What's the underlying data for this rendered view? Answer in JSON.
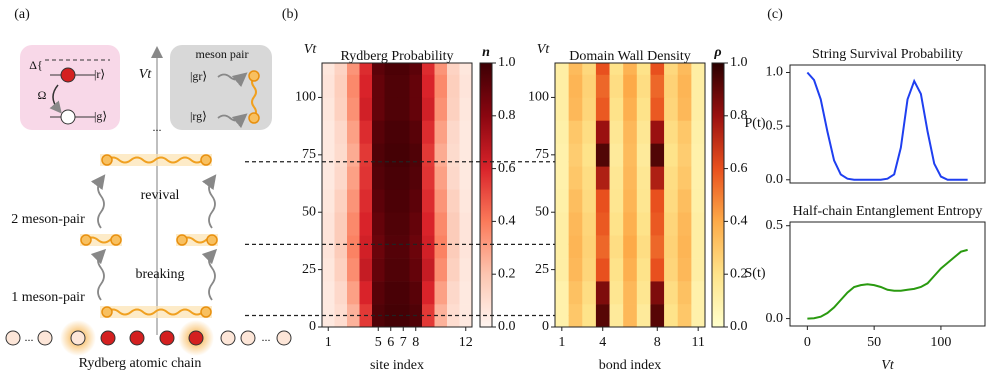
{
  "panel_labels": [
    "(a)",
    "(b)",
    "(c)"
  ],
  "diagram": {
    "delta": "Δ{",
    "ket_r": "|r⟩",
    "omega": "Ω",
    "ket_g": "|g⟩",
    "time_axis": "Vt",
    "meson_pair": "meson pair",
    "ket_gr": "|gr⟩",
    "ket_rg": "|rg⟩",
    "ellipsis": "...",
    "revival": "revival",
    "two_meson": "2 meson-pair",
    "breaking": "breaking",
    "one_meson": "1 meson-pair",
    "chain_dots": "...",
    "chain_label": "Rydberg atomic chain"
  },
  "chart_data": [
    {
      "type": "heatmap",
      "title": "Rydberg Probability",
      "xlabel": "site index",
      "ylabel": "Vt",
      "colorbar_label": "n",
      "x": [
        1,
        2,
        3,
        4,
        5,
        6,
        7,
        8,
        9,
        10,
        11,
        12
      ],
      "y_bins": [
        0,
        10,
        20,
        30,
        40,
        50,
        60,
        70,
        80,
        90,
        100,
        110,
        115
      ],
      "values": [
        [
          0.05,
          0.1,
          0.25,
          0.55,
          0.95,
          0.98,
          0.98,
          0.95,
          0.55,
          0.25,
          0.1,
          0.05
        ],
        [
          0.05,
          0.12,
          0.3,
          0.6,
          0.93,
          0.97,
          0.97,
          0.93,
          0.6,
          0.3,
          0.12,
          0.05
        ],
        [
          0.06,
          0.15,
          0.35,
          0.65,
          0.9,
          0.95,
          0.95,
          0.9,
          0.65,
          0.35,
          0.15,
          0.06
        ],
        [
          0.07,
          0.17,
          0.38,
          0.62,
          0.88,
          0.94,
          0.94,
          0.88,
          0.62,
          0.38,
          0.17,
          0.07
        ],
        [
          0.07,
          0.17,
          0.36,
          0.6,
          0.9,
          0.95,
          0.95,
          0.9,
          0.6,
          0.36,
          0.17,
          0.07
        ],
        [
          0.06,
          0.15,
          0.33,
          0.58,
          0.92,
          0.96,
          0.96,
          0.92,
          0.58,
          0.33,
          0.15,
          0.06
        ],
        [
          0.05,
          0.12,
          0.3,
          0.56,
          0.94,
          0.97,
          0.97,
          0.94,
          0.56,
          0.3,
          0.12,
          0.05
        ],
        [
          0.05,
          0.11,
          0.27,
          0.55,
          0.95,
          0.98,
          0.98,
          0.95,
          0.55,
          0.27,
          0.11,
          0.05
        ],
        [
          0.05,
          0.12,
          0.3,
          0.58,
          0.93,
          0.97,
          0.97,
          0.93,
          0.58,
          0.3,
          0.12,
          0.05
        ],
        [
          0.06,
          0.15,
          0.34,
          0.62,
          0.9,
          0.95,
          0.95,
          0.9,
          0.62,
          0.34,
          0.15,
          0.06
        ],
        [
          0.07,
          0.16,
          0.36,
          0.6,
          0.9,
          0.95,
          0.95,
          0.9,
          0.6,
          0.36,
          0.16,
          0.07
        ],
        [
          0.06,
          0.14,
          0.33,
          0.58,
          0.92,
          0.96,
          0.96,
          0.92,
          0.58,
          0.33,
          0.14,
          0.06
        ]
      ],
      "xlim": [
        0.5,
        12.5
      ],
      "ylim": [
        0,
        115
      ],
      "xticks": [
        1,
        5,
        6,
        7,
        8,
        12
      ],
      "yticks": [
        0,
        25,
        50,
        75,
        100
      ],
      "clim": [
        0,
        1
      ],
      "cticks": [
        {
          "value": 0,
          "label": "0.0"
        },
        {
          "value": 0.2,
          "label": "0.2"
        },
        {
          "value": 0.4,
          "label": "0.4"
        },
        {
          "value": 0.6,
          "label": "0.6"
        },
        {
          "value": 0.8,
          "label": "0.8"
        },
        {
          "value": 1,
          "label": "1.0"
        }
      ],
      "colormap": [
        "#fff5f0",
        "#fcc5b0",
        "#fb7a5a",
        "#d9232a",
        "#8a0610",
        "#3d0004"
      ],
      "hlines": [
        72,
        36,
        5
      ]
    },
    {
      "type": "heatmap",
      "title": "Domain Wall Density",
      "xlabel": "bond index",
      "ylabel": "Vt",
      "colorbar_label": "ρ",
      "x": [
        1,
        2,
        3,
        4,
        5,
        6,
        7,
        8,
        9,
        10,
        11
      ],
      "y_bins": [
        0,
        10,
        20,
        30,
        40,
        50,
        60,
        70,
        80,
        90,
        100,
        110,
        115
      ],
      "values": [
        [
          0.1,
          0.3,
          0.2,
          0.92,
          0.15,
          0.35,
          0.15,
          0.92,
          0.2,
          0.3,
          0.1
        ],
        [
          0.1,
          0.32,
          0.22,
          0.85,
          0.18,
          0.35,
          0.18,
          0.85,
          0.22,
          0.32,
          0.1
        ],
        [
          0.12,
          0.35,
          0.25,
          0.6,
          0.2,
          0.38,
          0.2,
          0.6,
          0.25,
          0.35,
          0.12
        ],
        [
          0.12,
          0.36,
          0.26,
          0.55,
          0.22,
          0.4,
          0.22,
          0.55,
          0.26,
          0.36,
          0.12
        ],
        [
          0.12,
          0.35,
          0.25,
          0.58,
          0.2,
          0.38,
          0.2,
          0.58,
          0.25,
          0.35,
          0.12
        ],
        [
          0.11,
          0.33,
          0.23,
          0.6,
          0.18,
          0.36,
          0.18,
          0.6,
          0.23,
          0.33,
          0.11
        ],
        [
          0.1,
          0.3,
          0.22,
          0.75,
          0.17,
          0.35,
          0.17,
          0.75,
          0.22,
          0.3,
          0.1
        ],
        [
          0.1,
          0.28,
          0.2,
          0.93,
          0.15,
          0.34,
          0.15,
          0.93,
          0.2,
          0.28,
          0.1
        ],
        [
          0.11,
          0.3,
          0.22,
          0.8,
          0.17,
          0.35,
          0.17,
          0.8,
          0.22,
          0.3,
          0.11
        ],
        [
          0.12,
          0.35,
          0.25,
          0.58,
          0.2,
          0.38,
          0.2,
          0.58,
          0.25,
          0.35,
          0.12
        ],
        [
          0.12,
          0.36,
          0.26,
          0.55,
          0.22,
          0.4,
          0.22,
          0.55,
          0.26,
          0.36,
          0.12
        ],
        [
          0.12,
          0.34,
          0.24,
          0.6,
          0.2,
          0.37,
          0.2,
          0.6,
          0.24,
          0.34,
          0.12
        ]
      ],
      "xlim": [
        0.5,
        11.5
      ],
      "ylim": [
        0,
        115
      ],
      "xticks": [
        1,
        4,
        8,
        11
      ],
      "yticks": [
        0,
        25,
        50,
        75,
        100
      ],
      "clim": [
        0,
        1
      ],
      "cticks": [
        {
          "value": 0,
          "label": "0.0"
        },
        {
          "value": 0.2,
          "label": "0.2"
        },
        {
          "value": 0.4,
          "label": "0.4"
        },
        {
          "value": 0.6,
          "label": "0.6"
        },
        {
          "value": 0.8,
          "label": "0.8"
        },
        {
          "value": 1,
          "label": "1.0"
        }
      ],
      "colormap": [
        "#ffffcc",
        "#fee38a",
        "#fdaa48",
        "#e8501e",
        "#9a1010",
        "#2a0000"
      ]
    },
    {
      "type": "line",
      "title": "String Survival Probability",
      "ylabel": "P(t)",
      "color": "#1f3ff0",
      "x": [
        0,
        5,
        10,
        15,
        20,
        25,
        30,
        35,
        40,
        45,
        50,
        55,
        60,
        65,
        70,
        75,
        80,
        85,
        90,
        95,
        100,
        105,
        110,
        115,
        120
      ],
      "values": [
        1.0,
        0.93,
        0.75,
        0.45,
        0.18,
        0.05,
        0.01,
        0,
        0,
        0,
        0,
        0,
        0.01,
        0.05,
        0.3,
        0.75,
        0.92,
        0.8,
        0.45,
        0.15,
        0.03,
        0,
        0,
        0,
        0
      ],
      "xlim": [
        -13,
        133
      ],
      "ylim": [
        -0.03,
        1.07
      ],
      "yticks": [
        {
          "value": 0,
          "label": "0.0"
        },
        {
          "value": 0.5,
          "label": "0.5"
        },
        {
          "value": 1,
          "label": "1.0"
        }
      ]
    },
    {
      "type": "line",
      "title": "Half-chain Entanglement Entropy",
      "ylabel": "S(t)",
      "xlabel": "Vt",
      "color": "#2a9a10",
      "x": [
        0,
        5,
        10,
        15,
        20,
        25,
        30,
        35,
        40,
        45,
        50,
        55,
        60,
        65,
        70,
        75,
        80,
        85,
        90,
        95,
        100,
        105,
        110,
        115,
        120
      ],
      "values": [
        0,
        0.002,
        0.01,
        0.03,
        0.06,
        0.1,
        0.14,
        0.17,
        0.18,
        0.185,
        0.18,
        0.17,
        0.155,
        0.15,
        0.15,
        0.155,
        0.16,
        0.17,
        0.19,
        0.23,
        0.27,
        0.3,
        0.33,
        0.36,
        0.37
      ],
      "xlim": [
        -13,
        133
      ],
      "ylim": [
        -0.04,
        0.52
      ],
      "xticks": [
        0,
        50,
        100
      ],
      "yticks": [
        {
          "value": 0,
          "label": "0.0"
        },
        {
          "value": 0.5,
          "label": "0.5"
        }
      ]
    }
  ]
}
